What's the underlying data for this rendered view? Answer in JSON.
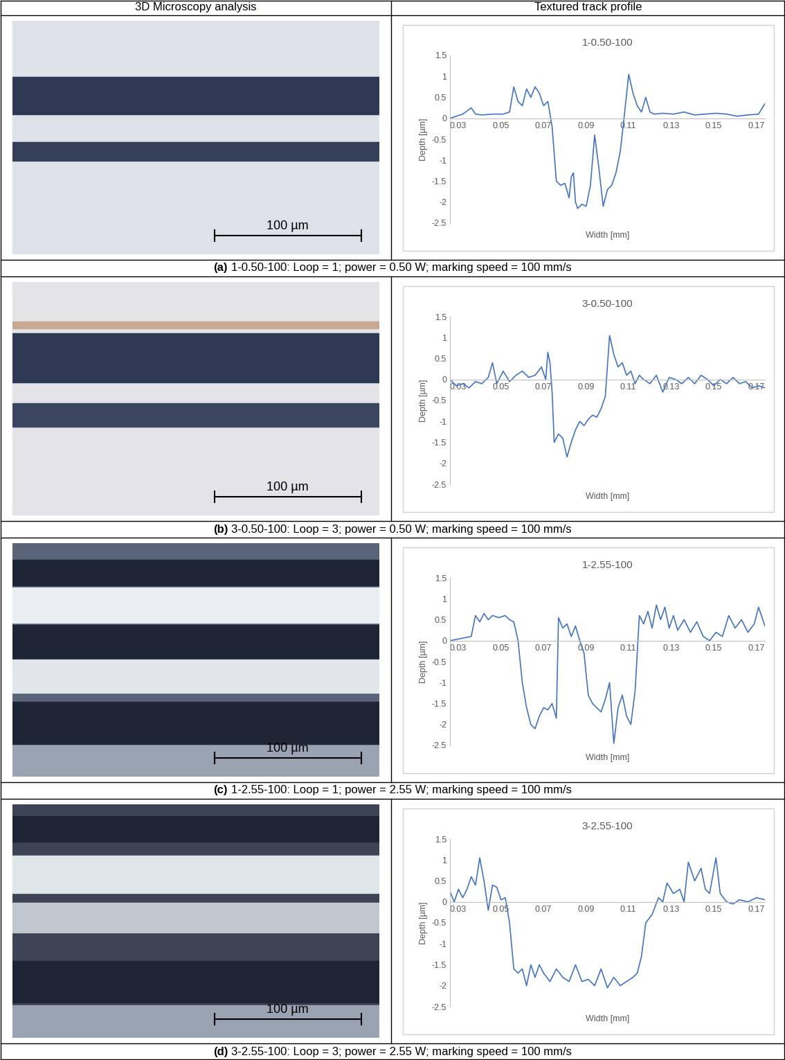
{
  "table": {
    "header": [
      "3D Microscopy analysis",
      "Textured track profile"
    ],
    "rows": [
      {
        "scale_bar": "100 µm",
        "caption_label": "(a)",
        "caption": "1-0.50-100: Loop = 1; power = 0.50 W; marking speed = 100 mm/s"
      },
      {
        "scale_bar": "100 µm",
        "caption_label": "(b)",
        "caption": "3-0.50-100: Loop = 3; power = 0.50 W; marking speed = 100 mm/s"
      },
      {
        "scale_bar": "100 µm",
        "caption_label": "(c)",
        "caption": "1-2.55-100: Loop = 1; power = 2.55 W; marking speed = 100 mm/s"
      },
      {
        "scale_bar": "100 µm",
        "caption_label": "(d)",
        "caption": "3-2.55-100: Loop = 3; power = 2.55 W; marking speed = 100 mm/s"
      }
    ]
  },
  "chart_data": [
    {
      "type": "line",
      "title": "1-0.50-100",
      "x_label": "Width [mm]",
      "y_label": "Depth [µm]",
      "color": "#4472c4",
      "grid": false,
      "xlim": [
        0.03,
        0.178
      ],
      "xticks": [
        0.03,
        0.05,
        0.07,
        0.09,
        0.11,
        0.13,
        0.15,
        0.17
      ],
      "ylim": [
        -2.5,
        1.5
      ],
      "yticks": [
        -2.5,
        -2,
        -1.5,
        -1,
        -0.5,
        0,
        0.5,
        1,
        1.5
      ],
      "x": [
        0.03,
        0.033,
        0.036,
        0.04,
        0.042,
        0.045,
        0.05,
        0.055,
        0.058,
        0.06,
        0.062,
        0.064,
        0.066,
        0.068,
        0.07,
        0.072,
        0.074,
        0.076,
        0.078,
        0.08,
        0.082,
        0.084,
        0.086,
        0.087,
        0.088,
        0.089,
        0.09,
        0.092,
        0.094,
        0.096,
        0.098,
        0.1,
        0.102,
        0.104,
        0.106,
        0.108,
        0.11,
        0.112,
        0.114,
        0.116,
        0.118,
        0.12,
        0.122,
        0.124,
        0.126,
        0.13,
        0.135,
        0.14,
        0.145,
        0.15,
        0.155,
        0.16,
        0.165,
        0.17,
        0.175,
        0.178
      ],
      "values": [
        0,
        0.05,
        0.1,
        0.25,
        0.1,
        0.08,
        0.1,
        0.1,
        0.15,
        0.75,
        0.4,
        0.3,
        0.7,
        0.5,
        0.75,
        0.6,
        0.3,
        0.4,
        -0.2,
        -1.5,
        -1.6,
        -1.55,
        -1.9,
        -1.4,
        -1.3,
        -2.0,
        -2.15,
        -2.05,
        -2.1,
        -1.6,
        -0.4,
        -1.2,
        -2.1,
        -1.7,
        -1.6,
        -1.3,
        -0.8,
        0.1,
        1.05,
        0.6,
        0.3,
        0.15,
        0.5,
        0.15,
        0.1,
        0.12,
        0.1,
        0.15,
        0.08,
        0.1,
        0.12,
        0.1,
        0.05,
        0.08,
        0.1,
        0.35
      ]
    },
    {
      "type": "line",
      "title": "3-0.50-100",
      "x_label": "Width [mm]",
      "y_label": "Depth [µm]",
      "color": "#4472c4",
      "grid": false,
      "xlim": [
        0.03,
        0.178
      ],
      "xticks": [
        0.03,
        0.05,
        0.07,
        0.09,
        0.11,
        0.13,
        0.15,
        0.17
      ],
      "ylim": [
        -2.5,
        1.5
      ],
      "yticks": [
        -2.5,
        -2,
        -1.5,
        -1,
        -0.5,
        0,
        0.5,
        1,
        1.5
      ],
      "x": [
        0.03,
        0.033,
        0.036,
        0.039,
        0.042,
        0.045,
        0.048,
        0.05,
        0.052,
        0.055,
        0.058,
        0.061,
        0.064,
        0.067,
        0.07,
        0.073,
        0.075,
        0.076,
        0.077,
        0.078,
        0.079,
        0.081,
        0.083,
        0.085,
        0.087,
        0.089,
        0.091,
        0.093,
        0.095,
        0.097,
        0.099,
        0.101,
        0.103,
        0.105,
        0.107,
        0.109,
        0.111,
        0.113,
        0.115,
        0.117,
        0.119,
        0.121,
        0.124,
        0.127,
        0.13,
        0.133,
        0.136,
        0.139,
        0.142,
        0.145,
        0.148,
        0.151,
        0.154,
        0.157,
        0.16,
        0.163,
        0.166,
        0.169,
        0.172,
        0.175,
        0.178
      ],
      "values": [
        0,
        -0.15,
        -0.1,
        -0.2,
        -0.05,
        -0.1,
        0.05,
        0.4,
        -0.1,
        0.2,
        -0.05,
        0.1,
        0.2,
        0.05,
        0.1,
        0.3,
        0.0,
        0.65,
        0.4,
        -0.3,
        -1.5,
        -1.3,
        -1.4,
        -1.85,
        -1.5,
        -1.2,
        -1.0,
        -1.1,
        -0.95,
        -0.85,
        -0.9,
        -0.7,
        -0.4,
        1.05,
        0.6,
        0.3,
        0.4,
        0.1,
        0.2,
        -0.1,
        0.1,
        0.0,
        -0.1,
        0.1,
        -0.3,
        0.05,
        0.0,
        -0.1,
        0.05,
        -0.1,
        0.1,
        0.0,
        -0.15,
        0.0,
        -0.1,
        0.05,
        -0.1,
        -0.05,
        -0.2,
        -0.15,
        -0.2
      ]
    },
    {
      "type": "line",
      "title": "1-2.55-100",
      "x_label": "Width [mm]",
      "y_label": "Depth [µm]",
      "color": "#4472c4",
      "grid": false,
      "xlim": [
        0.03,
        0.178
      ],
      "xticks": [
        0.03,
        0.05,
        0.07,
        0.09,
        0.11,
        0.13,
        0.15,
        0.17
      ],
      "ylim": [
        -2.5,
        1.5
      ],
      "yticks": [
        -2.5,
        -2,
        -1.5,
        -1,
        -0.5,
        0,
        0.5,
        1,
        1.5
      ],
      "x": [
        0.03,
        0.035,
        0.04,
        0.042,
        0.044,
        0.046,
        0.048,
        0.05,
        0.053,
        0.056,
        0.058,
        0.06,
        0.062,
        0.064,
        0.066,
        0.068,
        0.07,
        0.072,
        0.074,
        0.076,
        0.078,
        0.08,
        0.081,
        0.083,
        0.085,
        0.087,
        0.089,
        0.091,
        0.093,
        0.095,
        0.097,
        0.099,
        0.101,
        0.103,
        0.105,
        0.107,
        0.109,
        0.111,
        0.113,
        0.115,
        0.117,
        0.119,
        0.121,
        0.123,
        0.125,
        0.127,
        0.129,
        0.131,
        0.133,
        0.135,
        0.137,
        0.14,
        0.143,
        0.146,
        0.149,
        0.152,
        0.155,
        0.158,
        0.161,
        0.164,
        0.167,
        0.17,
        0.173,
        0.175,
        0.178
      ],
      "values": [
        0,
        0.05,
        0.1,
        0.6,
        0.45,
        0.65,
        0.5,
        0.6,
        0.55,
        0.6,
        0.5,
        0.45,
        0,
        -1.0,
        -1.6,
        -2.0,
        -2.1,
        -1.8,
        -1.6,
        -1.65,
        -1.5,
        -1.85,
        0.55,
        0.3,
        0.4,
        0.1,
        0.35,
        0.0,
        -0.3,
        -1.3,
        -1.5,
        -1.6,
        -1.7,
        -1.4,
        -1.0,
        -2.45,
        -1.6,
        -1.3,
        -1.8,
        -2.0,
        -1.2,
        0.6,
        0.4,
        0.7,
        0.3,
        0.85,
        0.5,
        0.8,
        0.3,
        0.6,
        0.25,
        0.5,
        0.2,
        0.45,
        0.1,
        0.0,
        0.2,
        0.1,
        0.6,
        0.3,
        0.5,
        0.2,
        0.4,
        0.8,
        0.35
      ]
    },
    {
      "type": "line",
      "title": "3-2.55-100",
      "x_label": "Width [mm]",
      "y_label": "Depth [µm]",
      "color": "#4472c4",
      "grid": false,
      "xlim": [
        0.03,
        0.178
      ],
      "xticks": [
        0.03,
        0.05,
        0.07,
        0.09,
        0.11,
        0.13,
        0.15,
        0.17
      ],
      "ylim": [
        -2.5,
        1.5
      ],
      "yticks": [
        -2.5,
        -2,
        -1.5,
        -1,
        -0.5,
        0,
        0.5,
        1,
        1.5
      ],
      "x": [
        0.03,
        0.032,
        0.034,
        0.036,
        0.038,
        0.04,
        0.042,
        0.044,
        0.046,
        0.048,
        0.05,
        0.052,
        0.054,
        0.056,
        0.058,
        0.06,
        0.062,
        0.064,
        0.066,
        0.068,
        0.07,
        0.072,
        0.074,
        0.077,
        0.08,
        0.083,
        0.086,
        0.089,
        0.092,
        0.095,
        0.098,
        0.101,
        0.104,
        0.107,
        0.11,
        0.113,
        0.116,
        0.118,
        0.12,
        0.122,
        0.125,
        0.128,
        0.13,
        0.132,
        0.135,
        0.138,
        0.14,
        0.142,
        0.145,
        0.148,
        0.15,
        0.152,
        0.155,
        0.157,
        0.16,
        0.163,
        0.166,
        0.17,
        0.174,
        0.178
      ],
      "values": [
        0.25,
        0.0,
        0.3,
        0.1,
        0.3,
        0.6,
        0.4,
        1.05,
        0.5,
        -0.2,
        0.4,
        0.35,
        0.05,
        0.1,
        -0.5,
        -1.6,
        -1.7,
        -1.6,
        -2.0,
        -1.5,
        -1.8,
        -1.5,
        -1.7,
        -1.9,
        -1.6,
        -1.8,
        -1.9,
        -1.5,
        -1.9,
        -1.85,
        -2.0,
        -1.6,
        -2.05,
        -1.8,
        -2.0,
        -1.9,
        -1.8,
        -1.7,
        -1.3,
        -0.5,
        -0.3,
        0.1,
        0.0,
        0.45,
        0.2,
        0.3,
        0.0,
        0.95,
        0.5,
        0.8,
        0.3,
        0.2,
        1.05,
        0.2,
        0.0,
        -0.05,
        0.05,
        0.0,
        0.1,
        0.05
      ]
    }
  ]
}
